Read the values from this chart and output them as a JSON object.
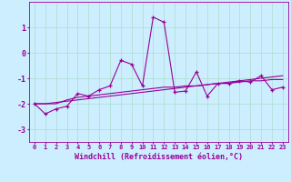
{
  "xlabel": "Windchill (Refroidissement éolien,°C)",
  "background_color": "#cceeff",
  "grid_color": "#aaddcc",
  "line_color": "#990099",
  "x_data": [
    0,
    1,
    2,
    3,
    4,
    5,
    6,
    7,
    8,
    9,
    10,
    11,
    12,
    13,
    14,
    15,
    16,
    17,
    18,
    19,
    20,
    21,
    22,
    23
  ],
  "line1": [
    -2.0,
    -2.4,
    -2.2,
    -2.1,
    -1.6,
    -1.7,
    -1.45,
    -1.3,
    -0.3,
    -0.45,
    -1.3,
    1.4,
    1.2,
    -1.55,
    -1.5,
    -0.75,
    -1.7,
    -1.2,
    -1.2,
    -1.1,
    -1.15,
    -0.9,
    -1.45,
    -1.35
  ],
  "line2": [
    -2.0,
    -2.0,
    -2.0,
    -1.85,
    -1.75,
    -1.7,
    -1.65,
    -1.6,
    -1.55,
    -1.5,
    -1.45,
    -1.4,
    -1.35,
    -1.35,
    -1.3,
    -1.3,
    -1.25,
    -1.2,
    -1.2,
    -1.15,
    -1.1,
    -1.1,
    -1.05,
    -1.05
  ],
  "line3": [
    -2.0,
    -2.0,
    -1.95,
    -1.9,
    -1.85,
    -1.8,
    -1.75,
    -1.7,
    -1.65,
    -1.6,
    -1.55,
    -1.5,
    -1.45,
    -1.4,
    -1.35,
    -1.3,
    -1.25,
    -1.2,
    -1.15,
    -1.1,
    -1.05,
    -1.0,
    -0.95,
    -0.9
  ],
  "ylim": [
    -3.5,
    2.0
  ],
  "yticks": [
    -3,
    -2,
    -1,
    0,
    1
  ],
  "xlim": [
    -0.5,
    23.5
  ],
  "xtick_fontsize": 5,
  "ytick_fontsize": 6,
  "xlabel_fontsize": 6
}
